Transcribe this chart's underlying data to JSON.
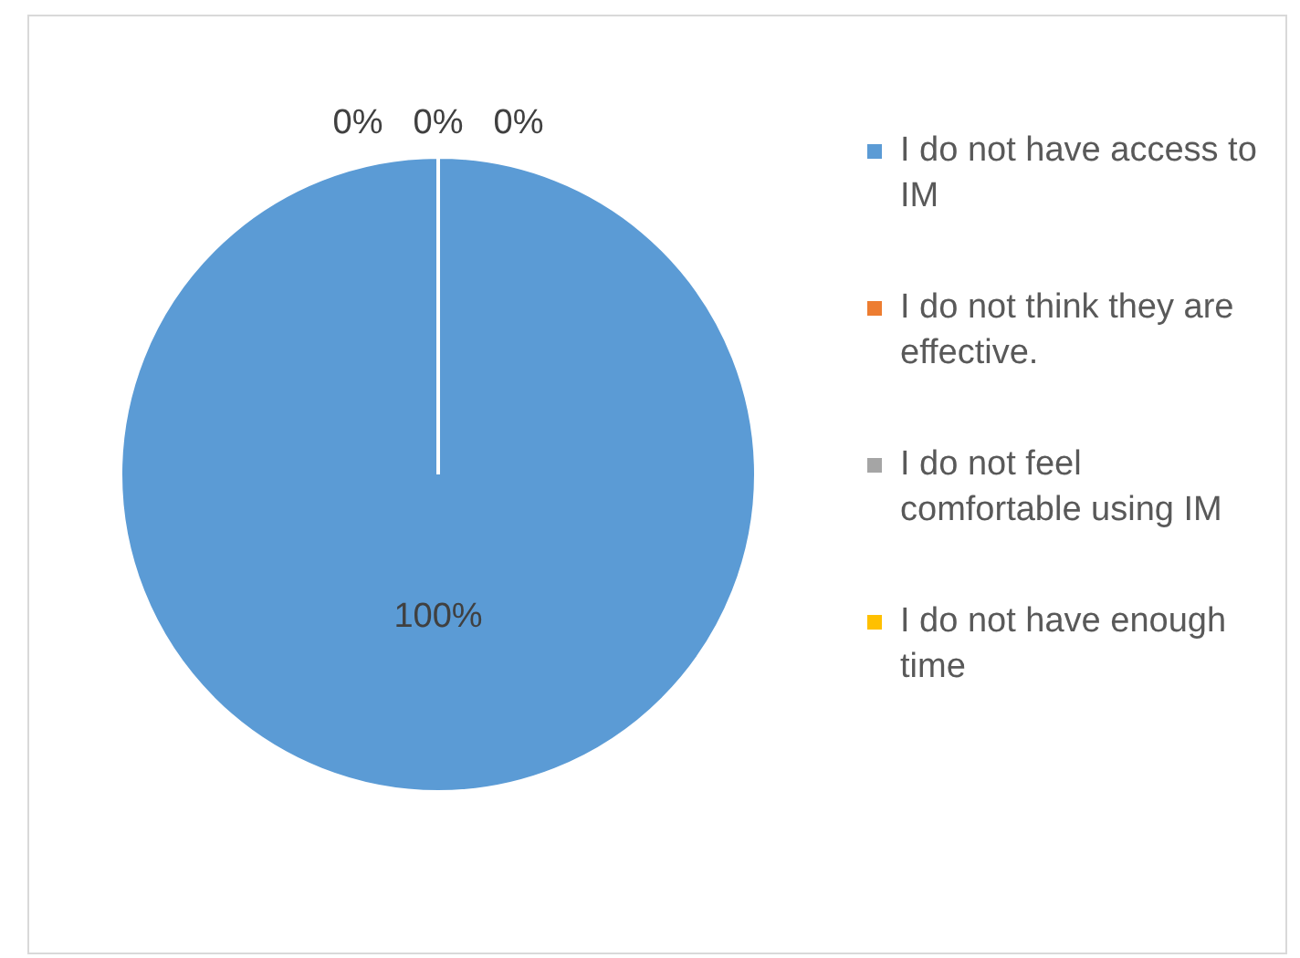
{
  "chart_data": {
    "type": "pie",
    "categories": [
      "I do not have access to IM",
      "I do not think they are effective.",
      "I do not feel comfortable using IM",
      "I do not have enough time"
    ],
    "values": [
      100,
      0,
      0,
      0
    ],
    "colors": [
      "#5b9bd5",
      "#ed7d31",
      "#a5a5a5",
      "#ffc000"
    ],
    "value_labels": [
      "100%",
      "0%",
      "0%",
      "0%"
    ],
    "legend": "right"
  }
}
